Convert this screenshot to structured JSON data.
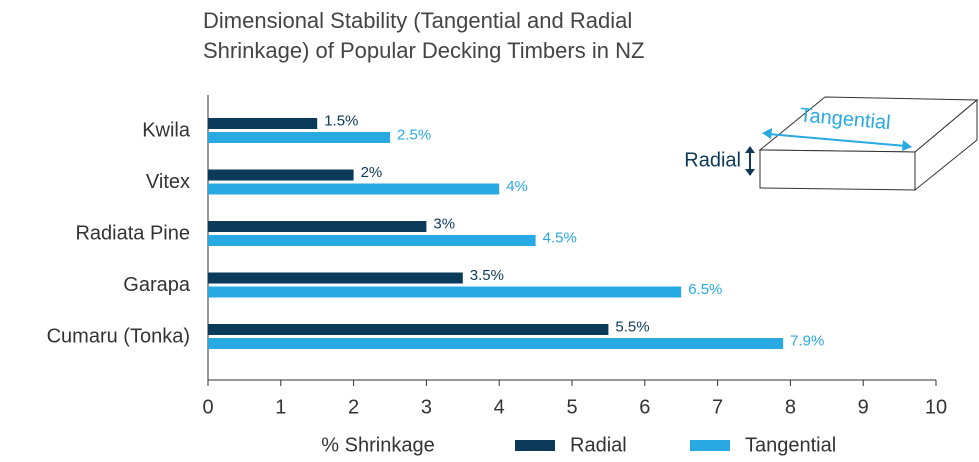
{
  "chart_data": {
    "type": "bar",
    "orientation": "horizontal",
    "title": [
      "Dimensional Stability (Tangential and Radial",
      "Shrinkage) of Popular Decking Timbers in NZ"
    ],
    "x_label": "% Shrinkage",
    "categories": [
      "Kwila",
      "Vitex",
      "Radiata Pine",
      "Garapa",
      "Cumaru (Tonka)"
    ],
    "series": [
      {
        "name": "Radial",
        "color": "#0b3a5a",
        "values": [
          1.5,
          2,
          3,
          3.5,
          5.5
        ],
        "value_labels": [
          "1.5%",
          "2%",
          "3%",
          "3.5%",
          "5.5%"
        ]
      },
      {
        "name": "Tangential",
        "color": "#29a9e1",
        "values": [
          2.5,
          4,
          4.5,
          6.5,
          7.9
        ],
        "value_labels": [
          "2.5%",
          "4%",
          "4.5%",
          "6.5%",
          "7.9%"
        ]
      }
    ],
    "xlim": [
      0,
      10
    ],
    "xticks": [
      0,
      1,
      2,
      3,
      4,
      5,
      6,
      7,
      8,
      9,
      10
    ],
    "annotations": [
      "Tangential",
      "Radial"
    ]
  }
}
